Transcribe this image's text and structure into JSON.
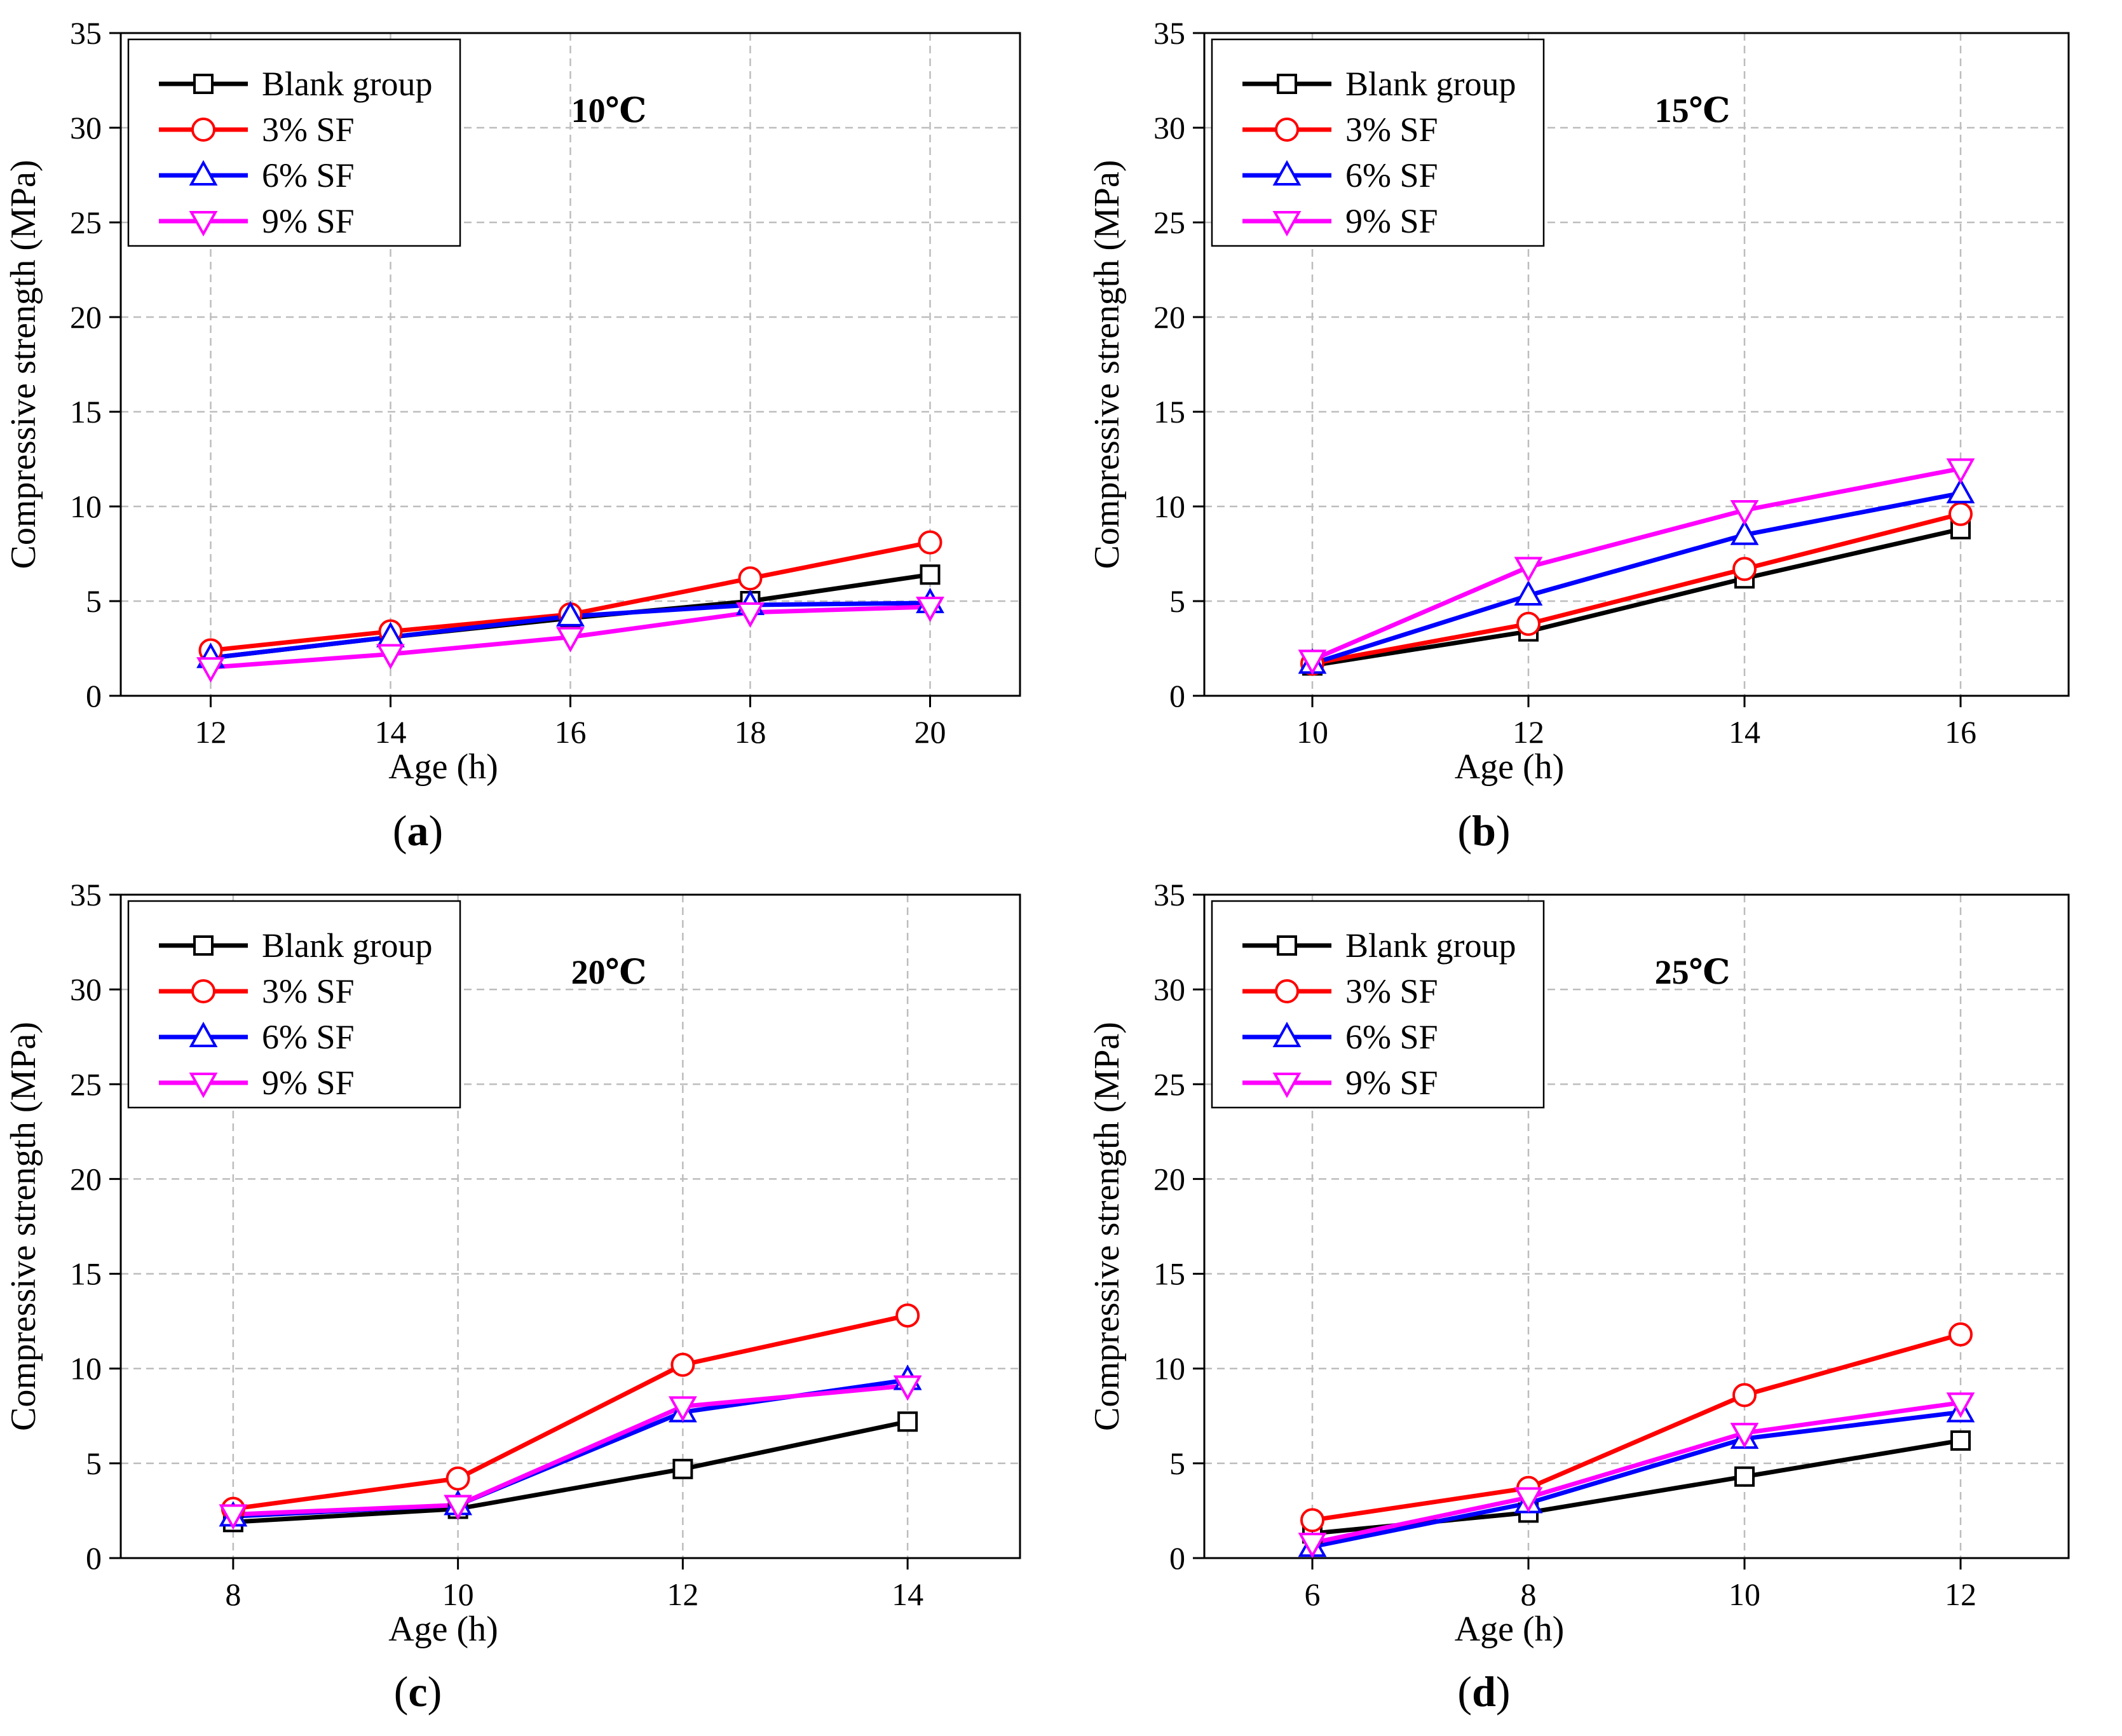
{
  "chart_data": [
    {
      "type": "line",
      "panel_label": "a",
      "annotation": "10℃",
      "xlabel": "Age (h)",
      "ylabel": "Compressive strength (MPa)",
      "xlim": [
        11,
        21
      ],
      "ylim": [
        0,
        35
      ],
      "xticks": [
        12,
        14,
        16,
        18,
        20
      ],
      "yticks": [
        0,
        5,
        10,
        15,
        20,
        25,
        30,
        35
      ],
      "grid": true,
      "legend_position": "top-left",
      "x": [
        12,
        14,
        16,
        18,
        20
      ],
      "series": [
        {
          "name": "Blank group",
          "color": "#000000",
          "marker": "square",
          "values": [
            2.0,
            3.1,
            4.1,
            5.0,
            6.4
          ]
        },
        {
          "name": "3% SF",
          "color": "#ff0000",
          "marker": "circle",
          "values": [
            2.4,
            3.4,
            4.3,
            6.2,
            8.1
          ]
        },
        {
          "name": "6% SF",
          "color": "#0000ff",
          "marker": "triangle-up",
          "values": [
            2.0,
            3.1,
            4.2,
            4.8,
            4.9
          ]
        },
        {
          "name": "9% SF",
          "color": "#ff00ff",
          "marker": "triangle-down",
          "values": [
            1.5,
            2.2,
            3.1,
            4.4,
            4.7
          ]
        }
      ]
    },
    {
      "type": "line",
      "panel_label": "b",
      "annotation": "15℃",
      "xlabel": "Age (h)",
      "ylabel": "Compressive strength (MPa)",
      "xlim": [
        9,
        17
      ],
      "ylim": [
        0,
        35
      ],
      "xticks": [
        10,
        12,
        14,
        16
      ],
      "yticks": [
        0,
        5,
        10,
        15,
        20,
        25,
        30,
        35
      ],
      "grid": true,
      "legend_position": "top-left",
      "x": [
        10,
        12,
        14,
        16
      ],
      "series": [
        {
          "name": "Blank group",
          "color": "#000000",
          "marker": "square",
          "values": [
            1.6,
            3.4,
            6.2,
            8.8
          ]
        },
        {
          "name": "3% SF",
          "color": "#ff0000",
          "marker": "circle",
          "values": [
            1.7,
            3.8,
            6.7,
            9.6
          ]
        },
        {
          "name": "6% SF",
          "color": "#0000ff",
          "marker": "triangle-up",
          "values": [
            1.7,
            5.3,
            8.5,
            10.7
          ]
        },
        {
          "name": "9% SF",
          "color": "#ff00ff",
          "marker": "triangle-down",
          "values": [
            1.9,
            6.8,
            9.8,
            12.0
          ]
        }
      ]
    },
    {
      "type": "line",
      "panel_label": "c",
      "annotation": "20℃",
      "xlabel": "Age (h)",
      "ylabel": "Compressive strength (MPa)",
      "xlim": [
        7,
        15
      ],
      "ylim": [
        0,
        35
      ],
      "xticks": [
        8,
        10,
        12,
        14
      ],
      "yticks": [
        0,
        5,
        10,
        15,
        20,
        25,
        30,
        35
      ],
      "grid": true,
      "legend_position": "top-left",
      "x": [
        8,
        10,
        12,
        14
      ],
      "series": [
        {
          "name": "Blank group",
          "color": "#000000",
          "marker": "square",
          "values": [
            1.9,
            2.6,
            4.7,
            7.2
          ]
        },
        {
          "name": "3% SF",
          "color": "#ff0000",
          "marker": "circle",
          "values": [
            2.6,
            4.2,
            10.2,
            12.8
          ]
        },
        {
          "name": "6% SF",
          "color": "#0000ff",
          "marker": "triangle-up",
          "values": [
            2.2,
            2.8,
            7.7,
            9.4
          ]
        },
        {
          "name": "9% SF",
          "color": "#ff00ff",
          "marker": "triangle-down",
          "values": [
            2.3,
            2.8,
            8.0,
            9.1
          ]
        }
      ]
    },
    {
      "type": "line",
      "panel_label": "d",
      "annotation": "25℃",
      "xlabel": "Age (h)",
      "ylabel": "Compressive strength (MPa)",
      "xlim": [
        5,
        13
      ],
      "ylim": [
        0,
        35
      ],
      "xticks": [
        6,
        8,
        10,
        12
      ],
      "yticks": [
        0,
        5,
        10,
        15,
        20,
        25,
        30,
        35
      ],
      "grid": true,
      "legend_position": "top-left",
      "x": [
        6,
        8,
        10,
        12
      ],
      "series": [
        {
          "name": "Blank group",
          "color": "#000000",
          "marker": "square",
          "values": [
            1.3,
            2.4,
            4.3,
            6.2
          ]
        },
        {
          "name": "3% SF",
          "color": "#ff0000",
          "marker": "circle",
          "values": [
            2.0,
            3.7,
            8.6,
            11.8
          ]
        },
        {
          "name": "6% SF",
          "color": "#0000ff",
          "marker": "triangle-up",
          "values": [
            0.6,
            2.9,
            6.3,
            7.7
          ]
        },
        {
          "name": "9% SF",
          "color": "#ff00ff",
          "marker": "triangle-down",
          "values": [
            0.8,
            3.2,
            6.6,
            8.2
          ]
        }
      ]
    }
  ]
}
